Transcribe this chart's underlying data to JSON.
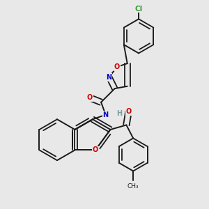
{
  "background_color": "#e8e8e8",
  "bond_color": "#1a1a1a",
  "atom_colors": {
    "N": "#0000cc",
    "O": "#cc0000",
    "Cl": "#3a9e3a",
    "H": "#7a9e9e",
    "C": "#1a1a1a"
  },
  "figsize": [
    3.0,
    3.0
  ],
  "dpi": 100
}
